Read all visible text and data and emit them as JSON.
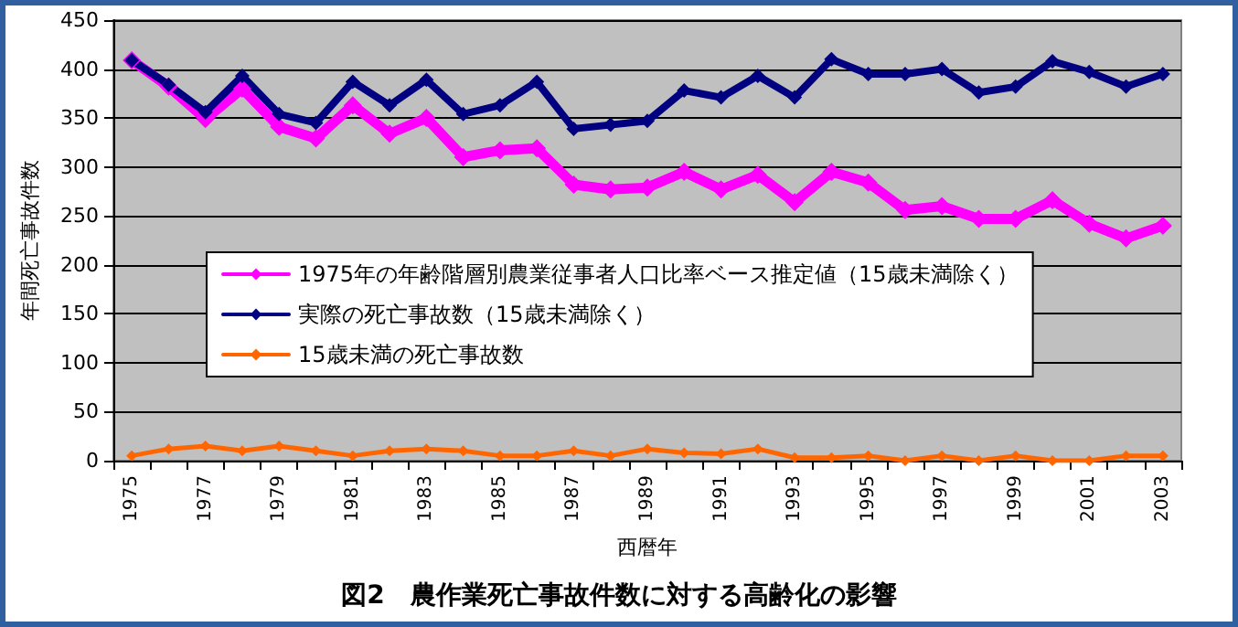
{
  "chart_data": {
    "type": "line",
    "title": "図2　農作業死亡事故件数に対する高齢化の影響",
    "xlabel": "西暦年",
    "ylabel": "年間死亡事故件数",
    "categories": [
      "1975",
      null,
      "1977",
      null,
      "1979",
      null,
      "1981",
      null,
      "1983",
      null,
      "1985",
      null,
      "1987",
      null,
      "1989",
      null,
      "1991",
      null,
      "1993",
      null,
      "1995",
      null,
      "1997",
      null,
      "1999",
      null,
      "2001",
      null,
      "2003"
    ],
    "series": [
      {
        "name": "1975年の年齢階層別農業従事者人口比率ベース推定値（15歳未満除く）",
        "color": "#ff00ff",
        "values": [
          409,
          382,
          349,
          380,
          341,
          329,
          363,
          334,
          350,
          310,
          317,
          319,
          282,
          277,
          279,
          295,
          277,
          292,
          264,
          295,
          284,
          256,
          260,
          247,
          247,
          266,
          242,
          227,
          240
        ]
      },
      {
        "name": "実際の死亡事故数（15歳未満除く）",
        "color": "#000080",
        "values": [
          409,
          384,
          356,
          393,
          354,
          345,
          387,
          363,
          389,
          354,
          363,
          387,
          339,
          343,
          347,
          378,
          371,
          393,
          371,
          410,
          395,
          395,
          400,
          376,
          382,
          408,
          397,
          382,
          395
        ]
      },
      {
        "name": "15歳未満の死亡事故数",
        "color": "#ff6600",
        "values": [
          5,
          12,
          15,
          10,
          15,
          10,
          5,
          10,
          12,
          10,
          5,
          5,
          10,
          5,
          12,
          8,
          7,
          12,
          3,
          3,
          5,
          0,
          5,
          0,
          5,
          0,
          0,
          5,
          5
        ]
      }
    ],
    "ylim": [
      0,
      450
    ],
    "yticks": [
      0,
      50,
      100,
      150,
      200,
      250,
      300,
      350,
      400,
      450
    ],
    "grid": "y",
    "legend": "left",
    "marker": "diamond",
    "line_style": "solid"
  }
}
